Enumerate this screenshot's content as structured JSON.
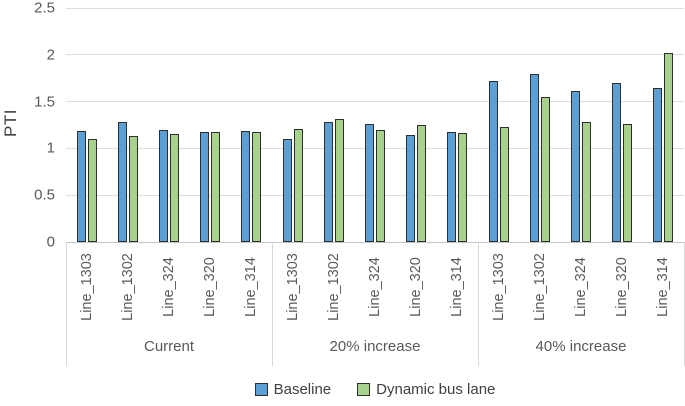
{
  "chart_data": {
    "type": "bar",
    "ylabel": "PTI",
    "ylim": [
      0,
      2.5
    ],
    "ytick_labels": [
      "0",
      "0.5",
      "1",
      "1.5",
      "2",
      "2.5"
    ],
    "yticks": [
      0,
      0.5,
      1,
      1.5,
      2,
      2.5
    ],
    "grid": true,
    "legend_position": "bottom",
    "groups": [
      "Current",
      "20% increase",
      "40% increase"
    ],
    "categories": [
      "Line_1303",
      "Line_1302",
      "Line_324",
      "Line_320",
      "Line_314"
    ],
    "series": [
      {
        "name": "Baseline",
        "color": "#5b9fd5",
        "values": [
          [
            1.16,
            1.26,
            1.18,
            1.15,
            1.16
          ],
          [
            1.08,
            1.26,
            1.24,
            1.12,
            1.15
          ],
          [
            1.7,
            1.77,
            1.59,
            1.68,
            1.62
          ]
        ]
      },
      {
        "name": "Dynamic bus lane",
        "color": "#a9d18e",
        "values": [
          [
            1.08,
            1.11,
            1.13,
            1.15,
            1.15
          ],
          [
            1.19,
            1.29,
            1.18,
            1.23,
            1.14
          ],
          [
            1.21,
            1.53,
            1.26,
            1.24,
            2.0
          ]
        ]
      }
    ],
    "bar_border_color": "#2e2e2e",
    "gridline_color": "#dcdcdc",
    "text_color": "#595959"
  }
}
